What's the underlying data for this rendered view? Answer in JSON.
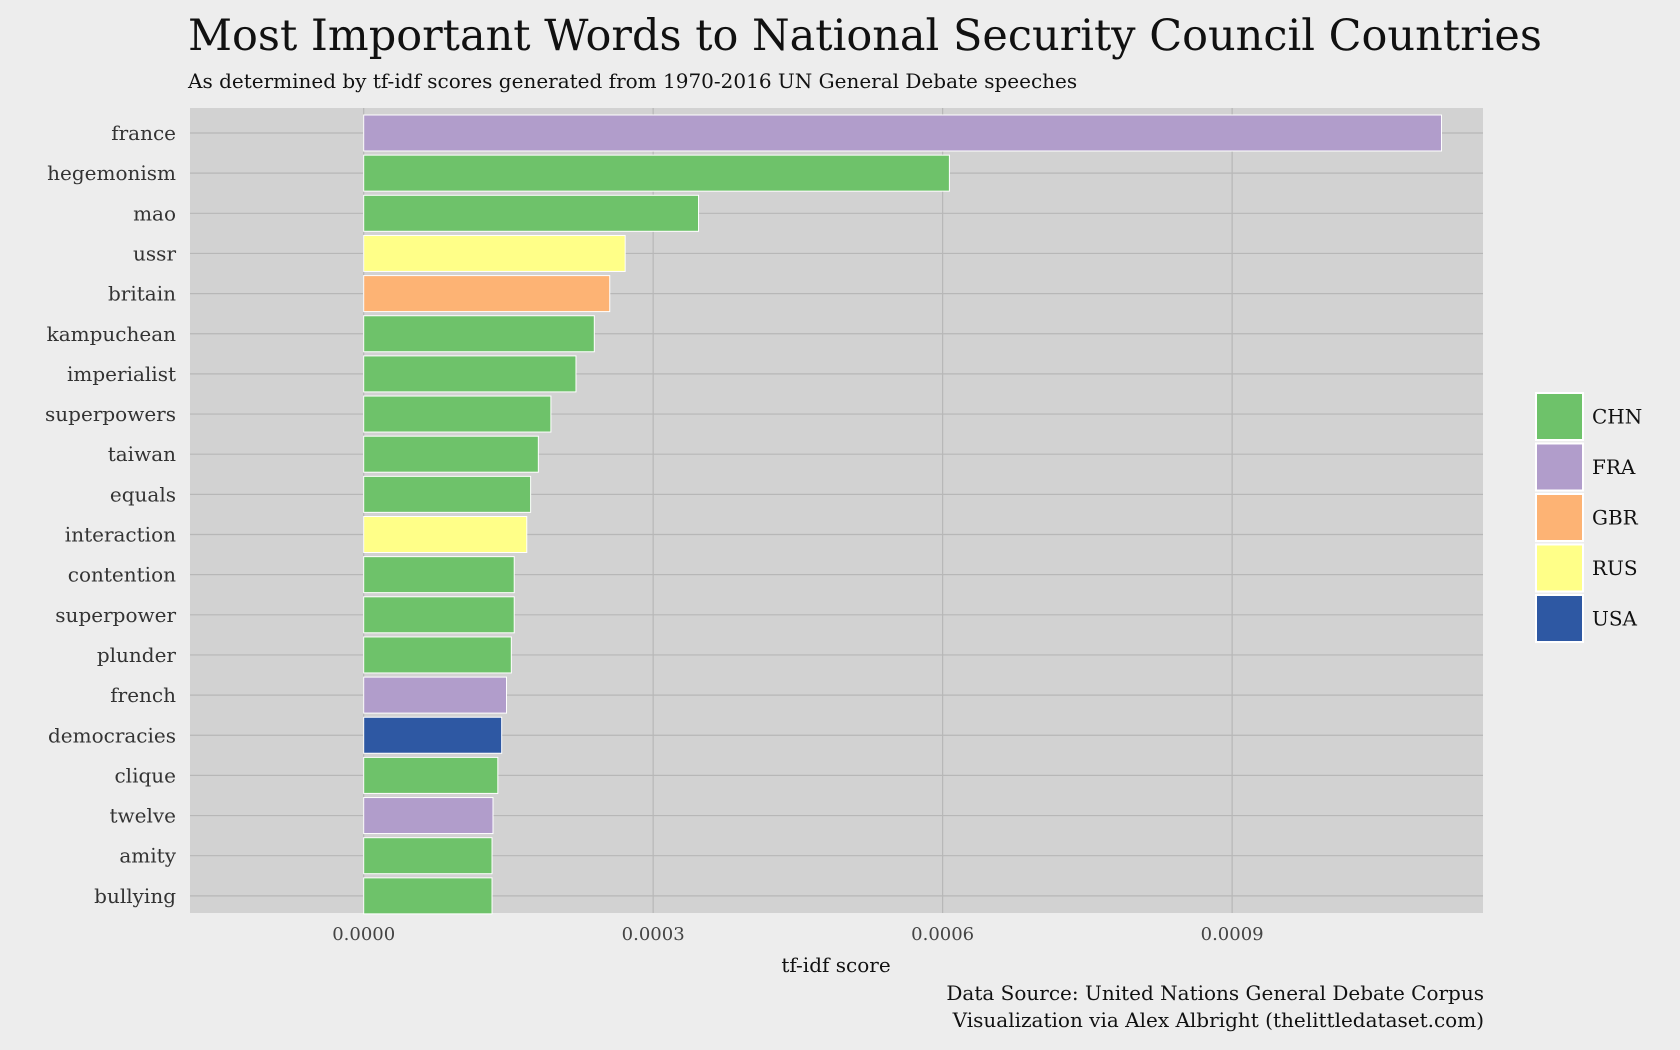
{
  "chart_data": {
    "type": "bar",
    "orientation": "horizontal",
    "title": "Most Important Words to National Security Council Countries",
    "subtitle": "As determined by tf-idf scores generated from 1970-2016 UN General Debate speeches",
    "xlabel": "tf-idf score",
    "ylabel": "",
    "xlim": [
      -0.00018,
      0.00116
    ],
    "x_ticks": [
      0,
      0.0003,
      0.0006,
      0.0009
    ],
    "x_tick_labels": [
      "0.0000",
      "0.0003",
      "0.0006",
      "0.0009"
    ],
    "grid": true,
    "legend_position": "right",
    "legend": [
      {
        "label": "CHN",
        "color": "#6ec26a"
      },
      {
        "label": "FRA",
        "color": "#b19dcb"
      },
      {
        "label": "GBR",
        "color": "#fdb374"
      },
      {
        "label": "RUS",
        "color": "#ffff88"
      },
      {
        "label": "USA",
        "color": "#2e58a3"
      }
    ],
    "bars": [
      {
        "word": "france",
        "value": 0.001117,
        "country": "FRA"
      },
      {
        "word": "hegemonism",
        "value": 0.000607,
        "country": "CHN"
      },
      {
        "word": "mao",
        "value": 0.000347,
        "country": "CHN"
      },
      {
        "word": "ussr",
        "value": 0.000271,
        "country": "RUS"
      },
      {
        "word": "britain",
        "value": 0.000255,
        "country": "GBR"
      },
      {
        "word": "kampuchean",
        "value": 0.000239,
        "country": "CHN"
      },
      {
        "word": "imperialist",
        "value": 0.00022,
        "country": "CHN"
      },
      {
        "word": "superpowers",
        "value": 0.000194,
        "country": "CHN"
      },
      {
        "word": "taiwan",
        "value": 0.000181,
        "country": "CHN"
      },
      {
        "word": "equals",
        "value": 0.000173,
        "country": "CHN"
      },
      {
        "word": "interaction",
        "value": 0.000169,
        "country": "RUS"
      },
      {
        "word": "contention",
        "value": 0.000156,
        "country": "CHN"
      },
      {
        "word": "superpower",
        "value": 0.000156,
        "country": "CHN"
      },
      {
        "word": "plunder",
        "value": 0.000153,
        "country": "CHN"
      },
      {
        "word": "french",
        "value": 0.000148,
        "country": "FRA"
      },
      {
        "word": "democracies",
        "value": 0.000143,
        "country": "USA"
      },
      {
        "word": "clique",
        "value": 0.000139,
        "country": "CHN"
      },
      {
        "word": "twelve",
        "value": 0.000134,
        "country": "FRA"
      },
      {
        "word": "amity",
        "value": 0.000133,
        "country": "CHN"
      },
      {
        "word": "bullying",
        "value": 0.000133,
        "country": "CHN"
      }
    ],
    "caption": [
      "Data Source: United Nations General Debate Corpus",
      "Visualization via Alex Albright (thelittledataset.com)"
    ]
  },
  "colors": {
    "background": "#ededed",
    "panel": "#d2d2d2",
    "gridline": "#b7b7b7"
  }
}
